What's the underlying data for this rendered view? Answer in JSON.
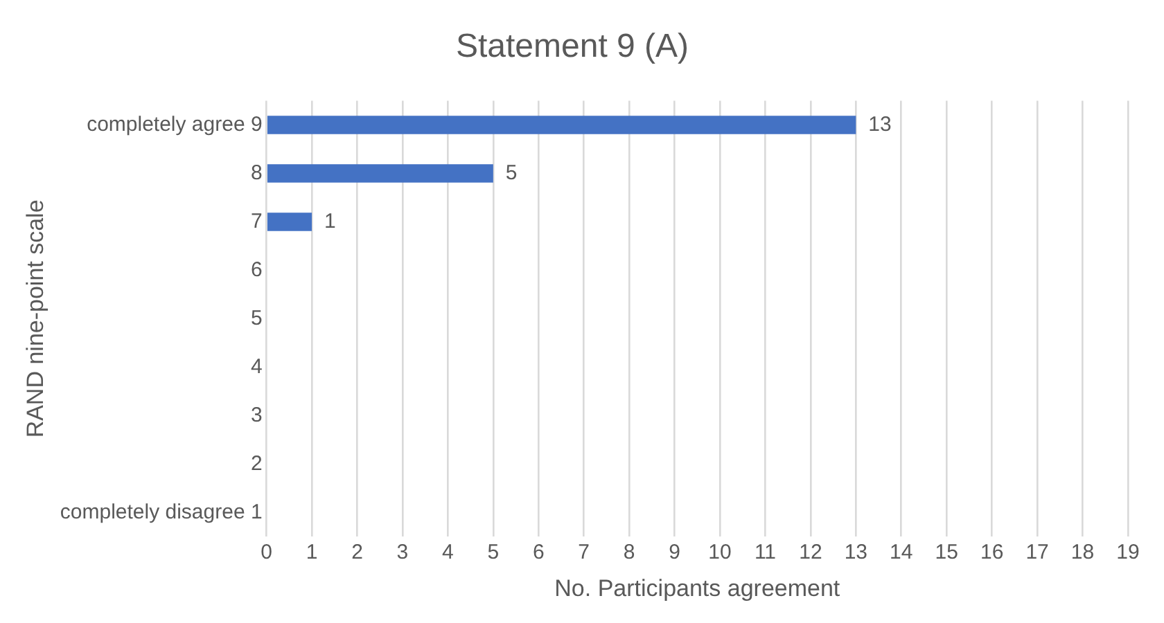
{
  "chart_data": {
    "type": "bar",
    "orientation": "horizontal",
    "title": "Statement 9 (A)",
    "xlabel": "No. Participants agreement",
    "ylabel": "RAND nine-point scale",
    "categories": [
      "completely agree 9",
      "8",
      "7",
      "6",
      "5",
      "4",
      "3",
      "2",
      "completely disagree 1"
    ],
    "values": [
      13,
      5,
      1,
      0,
      0,
      0,
      0,
      0,
      0
    ],
    "value_labels": [
      "13",
      "5",
      "1",
      null,
      null,
      null,
      null,
      null,
      null
    ],
    "color": "#4472c4",
    "xlim": [
      0,
      19
    ],
    "xticks": [
      0,
      1,
      2,
      3,
      4,
      5,
      6,
      7,
      8,
      9,
      10,
      11,
      12,
      13,
      14,
      15,
      16,
      17,
      18,
      19
    ],
    "grid": "x",
    "legend": false
  }
}
